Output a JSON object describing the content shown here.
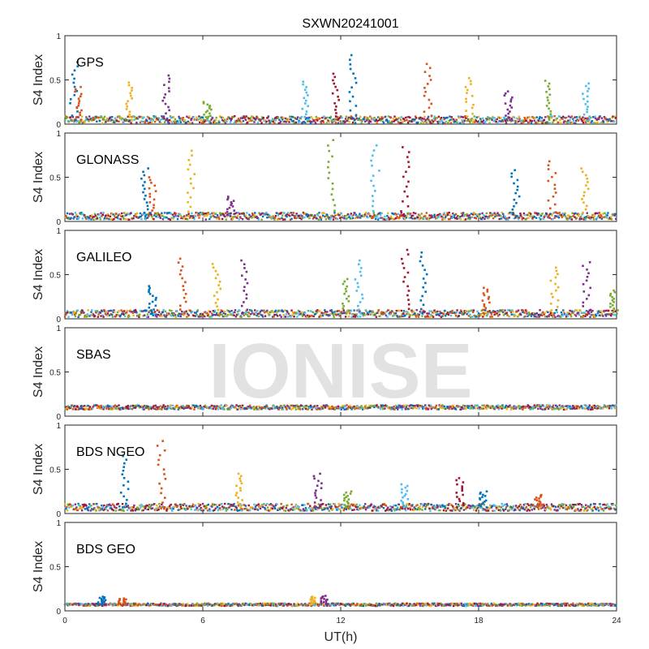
{
  "chart_data": {
    "type": "scatter",
    "title": "SXWN20241001",
    "xlabel": "UT(h)",
    "ylabel": "S4 Index",
    "xlim": [
      0,
      24
    ],
    "ylim": [
      0,
      1
    ],
    "xticks": [
      "0",
      "6",
      "12",
      "18",
      "24"
    ],
    "xtick_values": [
      0,
      6,
      12,
      18,
      24
    ],
    "yticks": [
      "0",
      "0.5",
      "1"
    ],
    "ytick_values": [
      0,
      0.5,
      1
    ],
    "watermark": "IONISE",
    "series_colors": [
      "#0072BD",
      "#D95319",
      "#EDB120",
      "#7E2F8E",
      "#77AC30",
      "#4DBEEE",
      "#A2142F"
    ],
    "panels": [
      {
        "name": "GPS",
        "baseline": 0.05,
        "noise": 0.04,
        "spikes": [
          [
            0.4,
            0.7
          ],
          [
            0.6,
            0.42
          ],
          [
            2.8,
            0.47
          ],
          [
            4.4,
            0.55
          ],
          [
            6.2,
            0.25
          ],
          [
            10.5,
            0.48
          ],
          [
            11.8,
            0.57
          ],
          [
            12.5,
            0.78
          ],
          [
            15.8,
            0.68
          ],
          [
            17.6,
            0.52
          ],
          [
            19.3,
            0.37
          ],
          [
            21.0,
            0.49
          ],
          [
            22.7,
            0.46
          ]
        ]
      },
      {
        "name": "GLONASS",
        "baseline": 0.06,
        "noise": 0.04,
        "spikes": [
          [
            3.5,
            0.6
          ],
          [
            3.8,
            0.5
          ],
          [
            5.5,
            0.8
          ],
          [
            7.2,
            0.28
          ],
          [
            11.6,
            0.92
          ],
          [
            13.5,
            0.86
          ],
          [
            14.8,
            0.84
          ],
          [
            19.6,
            0.58
          ],
          [
            21.2,
            0.68
          ],
          [
            22.6,
            0.6
          ]
        ]
      },
      {
        "name": "GALILEO",
        "baseline": 0.06,
        "noise": 0.04,
        "spikes": [
          [
            3.8,
            0.37
          ],
          [
            5.1,
            0.68
          ],
          [
            6.6,
            0.62
          ],
          [
            7.8,
            0.66
          ],
          [
            12.2,
            0.45
          ],
          [
            12.8,
            0.66
          ],
          [
            14.8,
            0.78
          ],
          [
            15.6,
            0.75
          ],
          [
            18.3,
            0.35
          ],
          [
            21.3,
            0.58
          ],
          [
            22.7,
            0.64
          ],
          [
            23.9,
            0.32
          ]
        ]
      },
      {
        "name": "SBAS",
        "baseline": 0.1,
        "noise": 0.025,
        "spikes": []
      },
      {
        "name": "BDS NGEO",
        "baseline": 0.07,
        "noise": 0.04,
        "spikes": [
          [
            2.6,
            0.65
          ],
          [
            4.2,
            0.82
          ],
          [
            7.6,
            0.45
          ],
          [
            11.0,
            0.45
          ],
          [
            12.3,
            0.25
          ],
          [
            14.8,
            0.33
          ],
          [
            17.2,
            0.4
          ],
          [
            18.2,
            0.25
          ],
          [
            20.6,
            0.21
          ]
        ]
      },
      {
        "name": "BDS GEO",
        "baseline": 0.07,
        "noise": 0.015,
        "spikes": [
          [
            1.6,
            0.16
          ],
          [
            2.5,
            0.14
          ],
          [
            10.8,
            0.16
          ],
          [
            11.3,
            0.17
          ]
        ]
      }
    ]
  }
}
